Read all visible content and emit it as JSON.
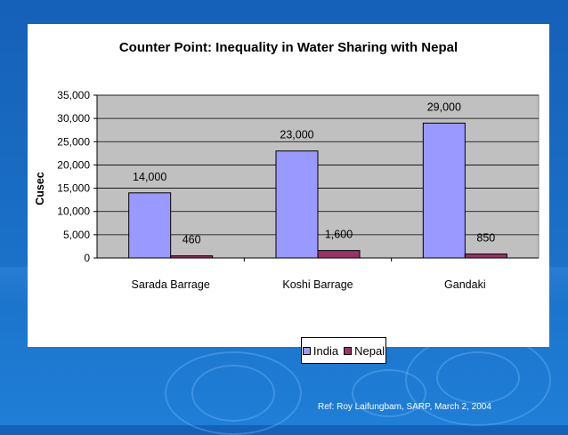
{
  "chart_data": {
    "type": "bar",
    "title": "Counter Point:  Inequality in Water Sharing with Nepal",
    "ylabel": "Cusec",
    "xlabel": "",
    "categories": [
      "Sarada Barrage",
      "Koshi Barrage",
      "Gandaki"
    ],
    "series": [
      {
        "name": "India",
        "values": [
          14000,
          23000,
          29000
        ],
        "labels": [
          "14,000",
          "23,000",
          "29,000"
        ],
        "color": "#9999ff"
      },
      {
        "name": "Nepal",
        "values": [
          460,
          1600,
          850
        ],
        "labels": [
          "460",
          "1,600",
          "850"
        ],
        "color": "#993366"
      }
    ],
    "ylim": [
      0,
      35000
    ],
    "yticks": [
      0,
      5000,
      10000,
      15000,
      20000,
      25000,
      30000,
      35000
    ],
    "ytick_labels": [
      "0",
      "5,000",
      "10,000",
      "15,000",
      "20,000",
      "25,000",
      "30,000",
      "35,000"
    ],
    "grid": true,
    "plot_background": "#c0c0c0",
    "legend_position": "bottom"
  },
  "footer": {
    "reference": "Ref: Roy Laifungbam, SARP, March 2, 2004"
  }
}
